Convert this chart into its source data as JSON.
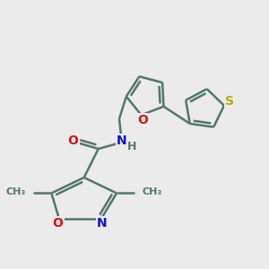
{
  "background_color": "#ebebeb",
  "bond_color": "#507868",
  "bond_width": 1.8,
  "atom_colors": {
    "O": "#dd1111",
    "N": "#1111cc",
    "S": "#bbaa00",
    "C": "#507868",
    "H": "#507868"
  },
  "font_size_atoms": 10,
  "font_size_methyl": 9
}
